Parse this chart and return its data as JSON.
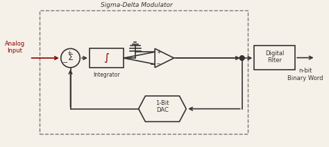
{
  "bg_color": "#f5f0e8",
  "border_color": "#555555",
  "dark_red": "#8B0000",
  "line_color": "#333333",
  "box_fill": "#f5f0e8",
  "title": "Sigma-Delta Modulator",
  "analog_input_label": "Analog\nInput",
  "integrator_label": "Integrator",
  "dac_label": "1-Bit\nDAC",
  "filter_label": "Digital\nFilter",
  "output_label": "n-bit\nBinary Word",
  "sigma_label": "Σ",
  "integral_label": "∫",
  "figsize": [
    4.74,
    2.13
  ],
  "dpi": 100
}
